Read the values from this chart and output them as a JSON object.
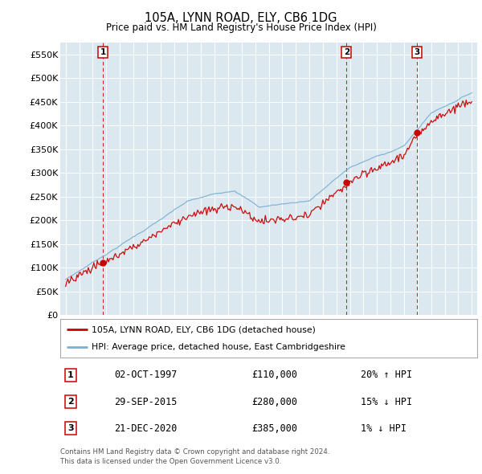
{
  "title": "105A, LYNN ROAD, ELY, CB6 1DG",
  "subtitle": "Price paid vs. HM Land Registry's House Price Index (HPI)",
  "legend_line1": "105A, LYNN ROAD, ELY, CB6 1DG (detached house)",
  "legend_line2": "HPI: Average price, detached house, East Cambridgeshire",
  "sale_points": [
    {
      "label": "1",
      "date": "02-OCT-1997",
      "price": 110000,
      "note": "20% ↑ HPI",
      "x_year": 1997.75
    },
    {
      "label": "2",
      "date": "29-SEP-2015",
      "price": 280000,
      "note": "15% ↓ HPI",
      "x_year": 2015.75
    },
    {
      "label": "3",
      "date": "21-DEC-2020",
      "price": 385000,
      "note": "1% ↓ HPI",
      "x_year": 2020.97
    }
  ],
  "footer_line1": "Contains HM Land Registry data © Crown copyright and database right 2024.",
  "footer_line2": "This data is licensed under the Open Government Licence v3.0.",
  "ylim": [
    0,
    575000
  ],
  "yticks": [
    0,
    50000,
    100000,
    150000,
    200000,
    250000,
    300000,
    350000,
    400000,
    450000,
    500000,
    550000
  ],
  "xlim_left": 1994.6,
  "xlim_right": 2025.4,
  "red_color": "#cc0000",
  "blue_color": "#7ab0d4",
  "bg_color": "#dce8f0",
  "plot_bg": "#dce8f0",
  "vline_color": "#cc0000",
  "grid_color": "#ffffff",
  "label_box_color": "#cc0000"
}
